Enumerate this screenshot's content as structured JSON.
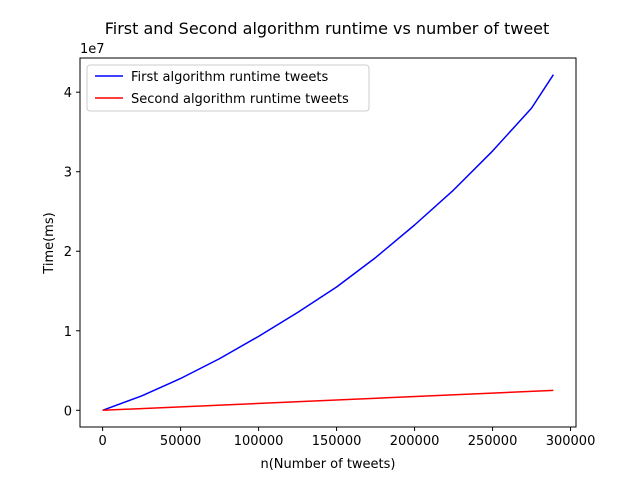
{
  "chart_data": {
    "type": "line",
    "title": "First and Second algorithm runtime vs number of tweet",
    "xlabel": "n(Number of tweets)",
    "ylabel": "Time(ms)",
    "y_offset_text": "1e7",
    "xlim": [
      -14500,
      303500
    ],
    "ylim": [
      -2100000,
      44300000
    ],
    "x_ticks": [
      {
        "value": 0,
        "label": "0"
      },
      {
        "value": 50000,
        "label": "50000"
      },
      {
        "value": 100000,
        "label": "100000"
      },
      {
        "value": 150000,
        "label": "150000"
      },
      {
        "value": 200000,
        "label": "200000"
      },
      {
        "value": 250000,
        "label": "250000"
      },
      {
        "value": 300000,
        "label": "300000"
      }
    ],
    "y_ticks": [
      {
        "value": 0,
        "label": "0"
      },
      {
        "value": 10000000,
        "label": "1"
      },
      {
        "value": 20000000,
        "label": "2"
      },
      {
        "value": 30000000,
        "label": "3"
      },
      {
        "value": 40000000,
        "label": "4"
      }
    ],
    "grid": false,
    "legend_position": "top-left",
    "series": [
      {
        "name": "First algorithm runtime tweets",
        "color": "#0000ff",
        "x": [
          0,
          25000,
          50000,
          75000,
          100000,
          125000,
          150000,
          175000,
          200000,
          225000,
          250000,
          275000,
          289000
        ],
        "y": [
          0,
          1800000,
          4000000,
          6500000,
          9300000,
          12300000,
          15500000,
          19200000,
          23300000,
          27700000,
          32600000,
          38000000,
          42200000
        ]
      },
      {
        "name": "Second algorithm runtime tweets",
        "color": "#ff0000",
        "x": [
          0,
          289000
        ],
        "y": [
          0,
          2500000
        ]
      }
    ]
  }
}
